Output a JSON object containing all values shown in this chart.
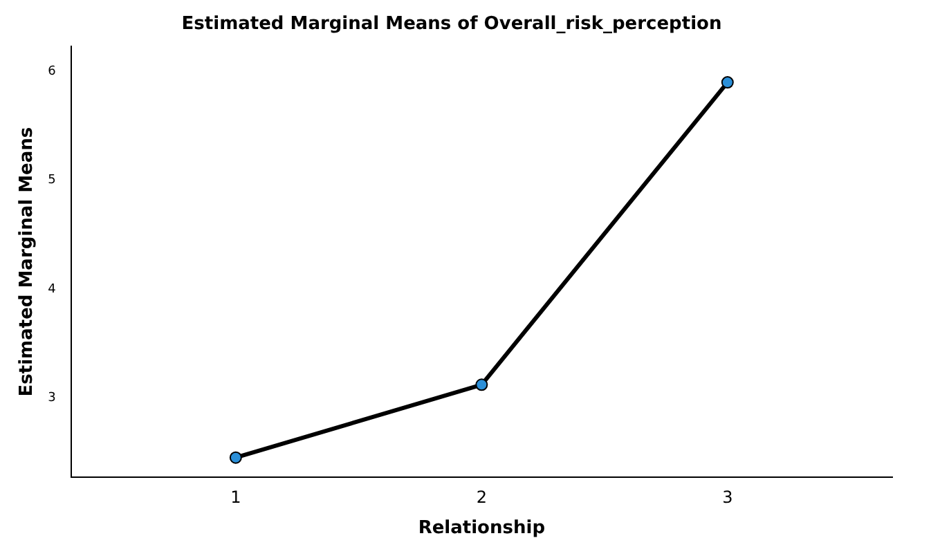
{
  "chart_data": {
    "type": "line",
    "title": "Estimated Marginal Means of Overall_risk_perception",
    "xlabel": "Relationship",
    "ylabel": "Estimated Marginal Means",
    "categories": [
      "1",
      "2",
      "3"
    ],
    "series": [
      {
        "color": "#000000",
        "values": [
          2.45,
          3.12,
          5.9
        ]
      }
    ],
    "ylim": [
      2.27,
      6.23
    ],
    "yticks": [
      3,
      4,
      5,
      6
    ],
    "grid": false,
    "legend": false,
    "marker": "circle",
    "line_style": "solid"
  }
}
